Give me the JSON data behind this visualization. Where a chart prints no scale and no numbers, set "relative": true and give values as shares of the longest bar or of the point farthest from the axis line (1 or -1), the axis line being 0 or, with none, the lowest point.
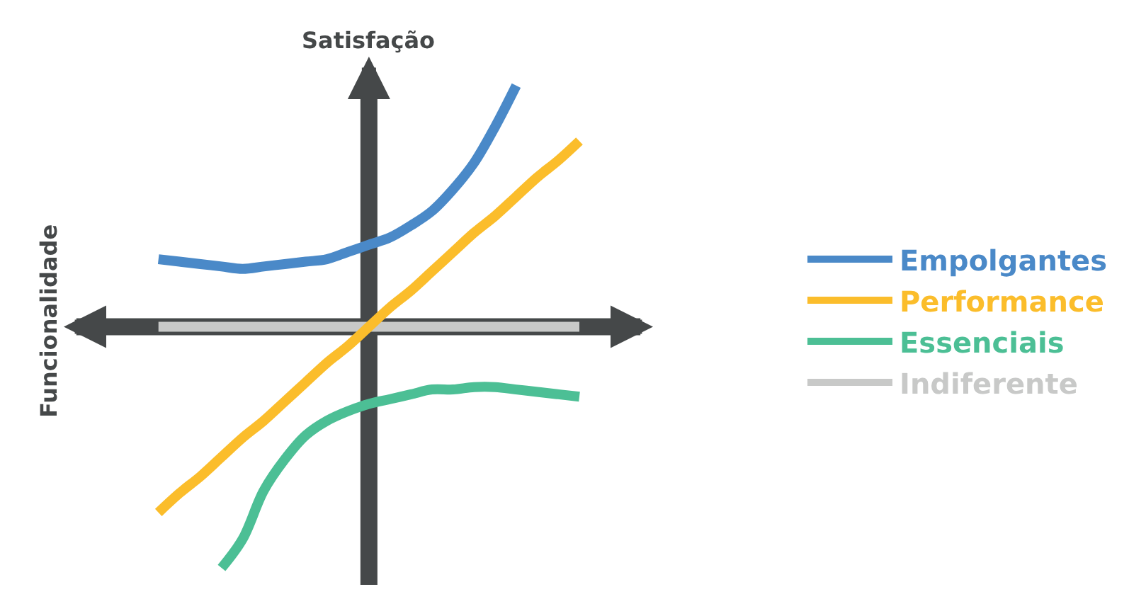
{
  "chart_data": {
    "type": "line",
    "relative": true,
    "title": "Satisfação",
    "ylabel": "Funcionalidade",
    "legend": "right",
    "grid": false,
    "marker": "none",
    "line_style": "solid",
    "categories": [
      null,
      null,
      null,
      null,
      null,
      null,
      null,
      null,
      null,
      null,
      null,
      null,
      null,
      null,
      null,
      null,
      null,
      null,
      null,
      null,
      null
    ],
    "series": [
      {
        "name": "Empolgantes",
        "color": "#4a89c8",
        "values": [
          0.28,
          0.27,
          0.26,
          0.25,
          0.24,
          0.25,
          0.26,
          0.27,
          0.28,
          0.31,
          0.34,
          0.37,
          0.42,
          0.48,
          0.57,
          0.68,
          0.83,
          1.0,
          null,
          null,
          null
        ]
      },
      {
        "name": "Performance",
        "color": "#fbbd2b",
        "values": [
          -0.77,
          -0.69,
          -0.62,
          -0.54,
          -0.46,
          -0.39,
          -0.31,
          -0.23,
          -0.15,
          -0.08,
          0,
          0.08,
          0.15,
          0.23,
          0.31,
          0.39,
          0.46,
          0.54,
          0.62,
          0.69,
          0.77
        ]
      },
      {
        "name": "Essenciais",
        "color": "#4cbf95",
        "values": [
          null,
          null,
          null,
          -1.0,
          -0.88,
          -0.68,
          -0.55,
          -0.45,
          -0.39,
          -0.35,
          -0.32,
          -0.3,
          -0.28,
          -0.26,
          -0.26,
          -0.25,
          -0.25,
          -0.26,
          -0.27,
          -0.28,
          -0.29
        ]
      },
      {
        "name": "Indiferente",
        "color": "#c8c9c8",
        "values": [
          0,
          0,
          0,
          0,
          0,
          0,
          0,
          0,
          0,
          0,
          0,
          0,
          0,
          0,
          0,
          0,
          0,
          0,
          0,
          0,
          0
        ]
      }
    ]
  }
}
